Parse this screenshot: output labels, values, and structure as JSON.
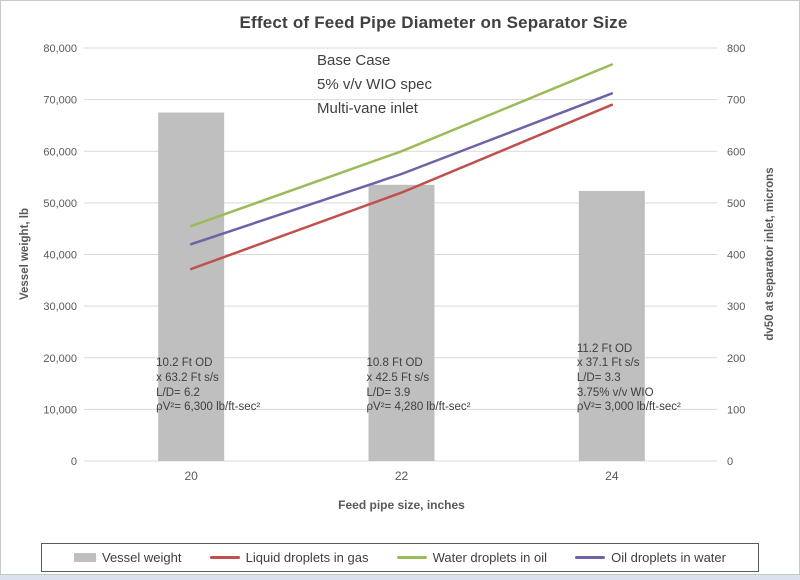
{
  "chart_data": {
    "type": "bar+line",
    "title": "Effect of Feed Pipe Diameter on Separator Size",
    "xlabel": "Feed pipe size, inches",
    "ylabel_left": "Vessel weight, lb",
    "ylabel_right": "dv50 at separator inlet, microns",
    "categories": [
      "20",
      "22",
      "24"
    ],
    "y_left": {
      "min": 0,
      "max": 80000,
      "step": 10000,
      "tick_labels": [
        "0",
        "10,000",
        "20,000",
        "30,000",
        "40,000",
        "50,000",
        "60,000",
        "70,000",
        "80,000"
      ]
    },
    "y_right": {
      "min": 0,
      "max": 800,
      "step": 100,
      "tick_labels": [
        "0",
        "100",
        "200",
        "300",
        "400",
        "500",
        "600",
        "700",
        "800"
      ]
    },
    "bar_series": {
      "name": "Vessel weight",
      "axis": "left",
      "color": "#BFBFBF",
      "values": [
        67500,
        53500,
        52300
      ]
    },
    "line_series": [
      {
        "name": "Liquid droplets in gas",
        "axis": "right",
        "color": "#C0504D",
        "values": [
          372,
          520,
          690
        ]
      },
      {
        "name": "Water droplets in oil",
        "axis": "right",
        "color": "#9BBB59",
        "values": [
          455,
          600,
          768
        ]
      },
      {
        "name": "Oil droplets in water",
        "axis": "right",
        "color": "#7161A5",
        "values": [
          420,
          556,
          712
        ]
      }
    ],
    "grid": true,
    "legend_position": "bottom",
    "annotations": {
      "base_case_note": [
        "Base Case",
        "5% v/v WIO spec",
        "Multi-vane inlet"
      ],
      "bar_notes": [
        {
          "category": "20",
          "lines": [
            "10.2 Ft OD",
            "x 63.2 Ft s/s",
            "L/D= 6.2",
            "ρV²= 6,300 lb/ft-sec²"
          ]
        },
        {
          "category": "22",
          "lines": [
            "10.8 Ft OD",
            "x 42.5 Ft s/s",
            "L/D= 3.9",
            "ρV²= 4,280 lb/ft-sec²"
          ]
        },
        {
          "category": "24",
          "lines": [
            "11.2 Ft OD",
            "x 37.1 Ft s/s",
            "L/D= 3.3",
            "3.75% v/v WIO",
            "ρV²= 3,000 lb/ft-sec²"
          ]
        }
      ]
    },
    "colors": {
      "grid": "#D9D9D9",
      "axis_text": "#595959",
      "title_text": "#404040",
      "annotation_text": "#404040",
      "legend_border": "#595959",
      "background": "#FFFFFF"
    }
  },
  "legend": {
    "entries": [
      {
        "label": "Vessel weight",
        "swatch": "bar",
        "color": "#BFBFBF"
      },
      {
        "label": "Liquid droplets in gas",
        "swatch": "line",
        "color": "#C0504D"
      },
      {
        "label": "Water droplets in oil",
        "swatch": "line",
        "color": "#9BBB59"
      },
      {
        "label": "Oil droplets in water",
        "swatch": "line",
        "color": "#7161A5"
      }
    ]
  }
}
